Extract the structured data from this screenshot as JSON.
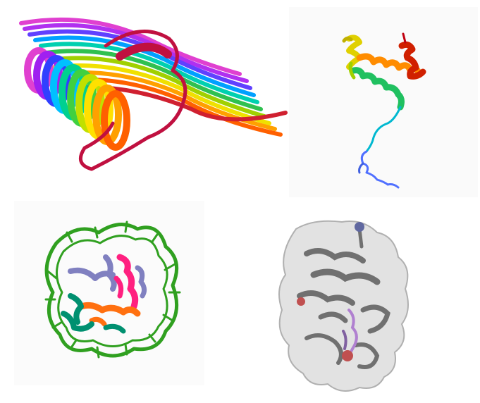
{
  "panels": [
    {
      "id": "beta-solenoid",
      "style": "rainbow cartoon",
      "colors": [
        "#c01040",
        "#e040d0",
        "#a020f0",
        "#3040ff",
        "#00c0ff",
        "#00d090",
        "#40d040",
        "#c0e000",
        "#ffe000",
        "#ffa000",
        "#ff6000",
        "#d02020"
      ]
    },
    {
      "id": "helical-protein",
      "style": "rainbow cartoon",
      "colors": [
        "#6080ff",
        "#00c0d0",
        "#20c060",
        "#a0d000",
        "#e0d000",
        "#ff9000",
        "#e03000",
        "#c00010"
      ]
    },
    {
      "id": "nucleosome",
      "style": "cartoon",
      "colors": {
        "dna": "#30a020",
        "h3": "#8080c0",
        "h4": "#ff2080",
        "h2a": "#ff7010",
        "h2b": "#009070"
      }
    },
    {
      "id": "surface-protein",
      "style": "transparent surface",
      "colors": {
        "surface": "#d8d8d8",
        "cartoon": "#707070",
        "ligand": "#b080d0",
        "sphere_blue": "#6068a0",
        "sphere_red": "#c05050"
      }
    }
  ]
}
